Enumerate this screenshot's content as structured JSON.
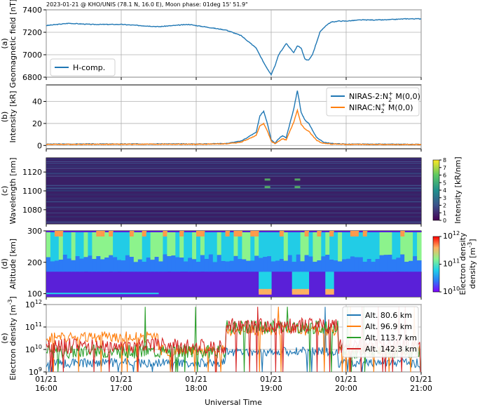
{
  "chart_data": {
    "title": "2023-01-21 @ KHO/UNIS (78.1 N, 16.0 E), Moon phase: 01deg 15' 51.9\"",
    "xlabel": "Universal Time",
    "x_ticks": [
      {
        "top": "01/21",
        "bottom": "16:00",
        "t": 0
      },
      {
        "top": "01/21",
        "bottom": "17:00",
        "t": 1
      },
      {
        "top": "01/21",
        "bottom": "18:00",
        "t": 2
      },
      {
        "top": "01/21",
        "bottom": "19:00",
        "t": 3
      },
      {
        "top": "01/21",
        "bottom": "20:00",
        "t": 4
      },
      {
        "top": "01/21",
        "bottom": "21:00",
        "t": 5
      }
    ],
    "panels": [
      {
        "id": "a",
        "type": "line",
        "panel_label": "(a)",
        "ylabel": "Geomagnetic field [nT]",
        "ylim": [
          6800,
          7400
        ],
        "yticks": [
          6800,
          7000,
          7200,
          7400
        ],
        "legend": "lower-left",
        "series": [
          {
            "name": "H-comp.",
            "color": "#1f77b4",
            "t": [
              0,
              0.3,
              0.6,
              1.0,
              1.5,
              1.9,
              2.2,
              2.4,
              2.6,
              2.8,
              2.9,
              3.0,
              3.05,
              3.1,
              3.2,
              3.25,
              3.3,
              3.35,
              3.4,
              3.45,
              3.5,
              3.55,
              3.6,
              3.65,
              3.7,
              3.75,
              3.8,
              3.9,
              4.0,
              4.2,
              4.5,
              4.8,
              5.0
            ],
            "y": [
              7260,
              7280,
              7270,
              7270,
              7250,
              7270,
              7240,
              7220,
              7170,
              7060,
              6930,
              6820,
              6900,
              7000,
              7100,
              7060,
              7020,
              7080,
              7060,
              6960,
              6950,
              7000,
              7100,
              7200,
              7240,
              7270,
              7290,
              7300,
              7300,
              7310,
              7310,
              7320,
              7320
            ]
          }
        ]
      },
      {
        "id": "b",
        "type": "line",
        "panel_label": "(b)",
        "ylabel": "Intensity [kR]",
        "ylim": [
          -3,
          55
        ],
        "yticks": [
          0,
          20,
          40
        ],
        "legend": "upper-right",
        "series": [
          {
            "name": "NIRAS-2:N2+M(0,0)",
            "color": "#1f77b4",
            "t": [
              0,
              0.5,
              1.0,
              1.5,
              2.0,
              2.4,
              2.6,
              2.8,
              2.85,
              2.9,
              2.95,
              3.0,
              3.05,
              3.1,
              3.15,
              3.2,
              3.25,
              3.3,
              3.35,
              3.4,
              3.45,
              3.5,
              3.55,
              3.6,
              3.65,
              3.7,
              3.8,
              4.0,
              4.5,
              5.0
            ],
            "y": [
              1.2,
              1.3,
              1.3,
              1.4,
              1.3,
              1.8,
              4,
              12,
              27,
              31,
              20,
              5,
              2,
              6,
              9,
              7,
              20,
              33,
              50,
              30,
              23,
              20,
              14,
              8,
              5,
              3,
              1.8,
              1.2,
              1.1,
              1.0
            ]
          },
          {
            "name": "NIRAC:N2+M(0,0)",
            "color": "#ff7f0e",
            "t": [
              0,
              0.5,
              1.0,
              1.5,
              2.0,
              2.4,
              2.6,
              2.8,
              2.85,
              2.9,
              2.95,
              3.0,
              3.05,
              3.1,
              3.15,
              3.2,
              3.25,
              3.3,
              3.35,
              3.4,
              3.45,
              3.5,
              3.55,
              3.6,
              3.65,
              3.7,
              3.8,
              4.0,
              4.5,
              5.0
            ],
            "y": [
              1.0,
              1.1,
              1.1,
              1.2,
              1.1,
              1.5,
              3,
              9,
              18,
              20,
              13,
              4,
              1.5,
              4,
              6,
              5,
              13,
              21,
              32,
              19,
              15,
              13,
              9,
              5,
              3,
              2,
              1.4,
              1.0,
              0.9,
              0.8
            ]
          }
        ]
      },
      {
        "id": "c",
        "type": "heatmap",
        "panel_label": "(c)",
        "ylabel": "Wavelength [nm]",
        "ylim": [
          1065,
          1135
        ],
        "yticks": [
          1080,
          1100,
          1120
        ],
        "colorbar_label": "Intensity [kR/nm]",
        "colorbar_ticks": [
          0,
          1,
          2,
          3,
          4,
          5,
          6,
          7,
          8
        ]
      },
      {
        "id": "d",
        "type": "heatmap",
        "panel_label": "(d)",
        "ylabel": "Altitude [km]",
        "ylim": [
          90,
          300
        ],
        "yticks": [
          100,
          200,
          300
        ],
        "colorbar_label": "Electron density [m^-3]",
        "colorbar_ticks": [
          "10^10",
          "10^11",
          "10^12"
        ]
      },
      {
        "id": "e",
        "type": "line",
        "panel_label": "(e)",
        "ylabel": "Electron density [m^-3]",
        "yscale": "log",
        "ylim": [
          1000000000.0,
          1000000000000.0
        ],
        "yticks": [
          "10^9",
          "10^10",
          "10^11",
          "10^12"
        ],
        "legend": "upper-right",
        "series": [
          {
            "name": "Alt.  80.6 km",
            "color": "#1f77b4"
          },
          {
            "name": "Alt.  96.9 km",
            "color": "#ff7f0e"
          },
          {
            "name": "Alt.  113.7 km",
            "color": "#2ca02c"
          },
          {
            "name": "Alt.  142.3 km",
            "color": "#d62728"
          }
        ]
      }
    ]
  }
}
